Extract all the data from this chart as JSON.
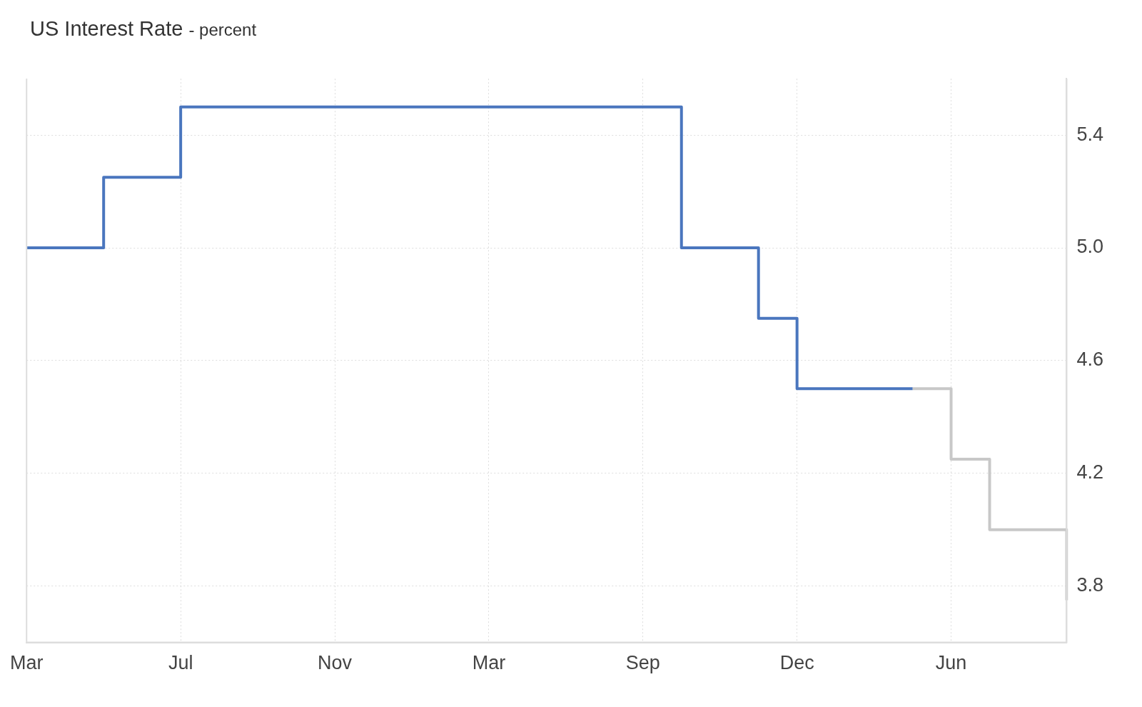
{
  "chart_data": {
    "type": "step",
    "title": "US Interest Rate",
    "subtitle": "- percent",
    "categories": [
      "Mar",
      null,
      null,
      null,
      "Jul",
      null,
      null,
      null,
      "Nov",
      null,
      null,
      null,
      "Mar",
      null,
      null,
      null,
      "Sep",
      null,
      null,
      null,
      "Dec",
      null,
      null,
      null,
      "Jun",
      null,
      null,
      null
    ],
    "series": [
      {
        "color": "#4a76be",
        "values": [
          5.0,
          5.0,
          5.25,
          5.25,
          5.5,
          5.5,
          5.5,
          5.5,
          5.5,
          5.5,
          5.5,
          5.5,
          5.5,
          5.5,
          5.5,
          5.5,
          5.5,
          5.0,
          5.0,
          4.75,
          4.5,
          4.5,
          4.5,
          4.5,
          null,
          null,
          null,
          null
        ]
      },
      {
        "color": "#c8c8c8",
        "values": [
          null,
          null,
          null,
          null,
          null,
          null,
          null,
          null,
          null,
          null,
          null,
          null,
          null,
          null,
          null,
          null,
          null,
          null,
          null,
          null,
          null,
          null,
          null,
          4.5,
          4.25,
          4.0,
          4.0,
          3.75
        ]
      }
    ],
    "ylim": [
      3.6,
      5.6
    ],
    "yticks": [
      3.8,
      4.2,
      4.6,
      {
        "value": 5.0,
        "label": "5.0"
      },
      5.4
    ],
    "grid": true,
    "legend": false,
    "marker": "none"
  }
}
